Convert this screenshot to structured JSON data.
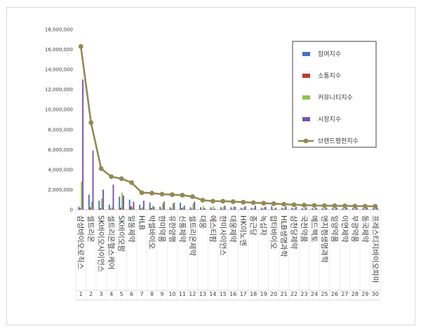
{
  "chart_data": {
    "type": "bar",
    "ranks": [
      "1",
      "2",
      "3",
      "4",
      "5",
      "6",
      "7",
      "8",
      "9",
      "10",
      "11",
      "12",
      "13",
      "14",
      "15",
      "16",
      "17",
      "18",
      "19",
      "20",
      "21",
      "22",
      "23",
      "24",
      "25",
      "26",
      "27",
      "28",
      "29",
      "30"
    ],
    "categories": [
      "삼성바이오로직스",
      "셀트리온",
      "SK바이오사이언스",
      "셀트리온헬스케어",
      "SK바이오팜",
      "일동제약",
      "HLB",
      "박셀바이오",
      "한미약품",
      "유한양행",
      "신풍제약",
      "셀트리온제약",
      "대웅",
      "에스티팜",
      "한미사이언스",
      "대웅제약",
      "HK이노엔",
      "종근당",
      "녹십자",
      "압타바이오",
      "HLB생명과학",
      "삼천당제약",
      "국전약품",
      "메드팩토",
      "엔지켐생명과학",
      "일양약품",
      "이연제약",
      "부광약품",
      "동국제약",
      "프레스티지바이오파마"
    ],
    "series": [
      {
        "name": "참여지수",
        "color": "#4472c4",
        "values": [
          300000,
          1500000,
          900000,
          500000,
          1300000,
          1000000,
          500000,
          700000,
          300000,
          250000,
          700000,
          250000,
          250000,
          250000,
          250000,
          250000,
          200000,
          200000,
          200000,
          350000,
          200000,
          200000,
          150000,
          150000,
          150000,
          150000,
          150000,
          150000,
          150000,
          150000
        ]
      },
      {
        "name": "소통지수",
        "color": "#c0392b",
        "values": [
          150000,
          250000,
          150000,
          100000,
          200000,
          350000,
          100000,
          150000,
          80000,
          80000,
          150000,
          80000,
          60000,
          60000,
          60000,
          60000,
          60000,
          60000,
          60000,
          60000,
          60000,
          60000,
          50000,
          50000,
          50000,
          50000,
          50000,
          50000,
          50000,
          50000
        ]
      },
      {
        "name": "커뮤니티지수",
        "color": "#8bc34a",
        "values": [
          2800000,
          800000,
          1100000,
          250000,
          1700000,
          250000,
          250000,
          400000,
          600000,
          600000,
          250000,
          600000,
          350000,
          350000,
          300000,
          300000,
          250000,
          200000,
          250000,
          100000,
          200000,
          150000,
          150000,
          150000,
          150000,
          150000,
          150000,
          150000,
          150000,
          150000
        ]
      },
      {
        "name": "시장지수",
        "color": "#7b52ab",
        "values": [
          13000000,
          5900000,
          2000000,
          2500000,
          1400000,
          800000,
          900000,
          300000,
          800000,
          700000,
          400000,
          800000,
          150000,
          100000,
          400000,
          300000,
          350000,
          400000,
          300000,
          200000,
          350000,
          300000,
          250000,
          200000,
          200000,
          200000,
          200000,
          200000,
          200000,
          200000
        ]
      },
      {
        "name": "브랜드평판지수",
        "color": "#938953",
        "type": "line",
        "values": [
          16300000,
          8700000,
          4100000,
          3300000,
          3100000,
          2700000,
          1700000,
          1650000,
          1550000,
          1500000,
          1450000,
          1300000,
          950000,
          850000,
          850000,
          800000,
          750000,
          700000,
          650000,
          600000,
          550000,
          500000,
          450000,
          420000,
          400000,
          390000,
          380000,
          360000,
          350000,
          340000
        ]
      }
    ],
    "ylim": [
      0,
      18000000
    ],
    "yticks": [
      0,
      2000000,
      4000000,
      6000000,
      8000000,
      10000000,
      12000000,
      14000000,
      16000000,
      18000000
    ],
    "ytick_labels": [
      "0",
      "2,000,000",
      "4,000,000",
      "6,000,000",
      "8,000,000",
      "10,000,000",
      "12,000,000",
      "14,000,000",
      "16,000,000",
      "18,000,000"
    ],
    "legend": "right",
    "grid": false
  }
}
